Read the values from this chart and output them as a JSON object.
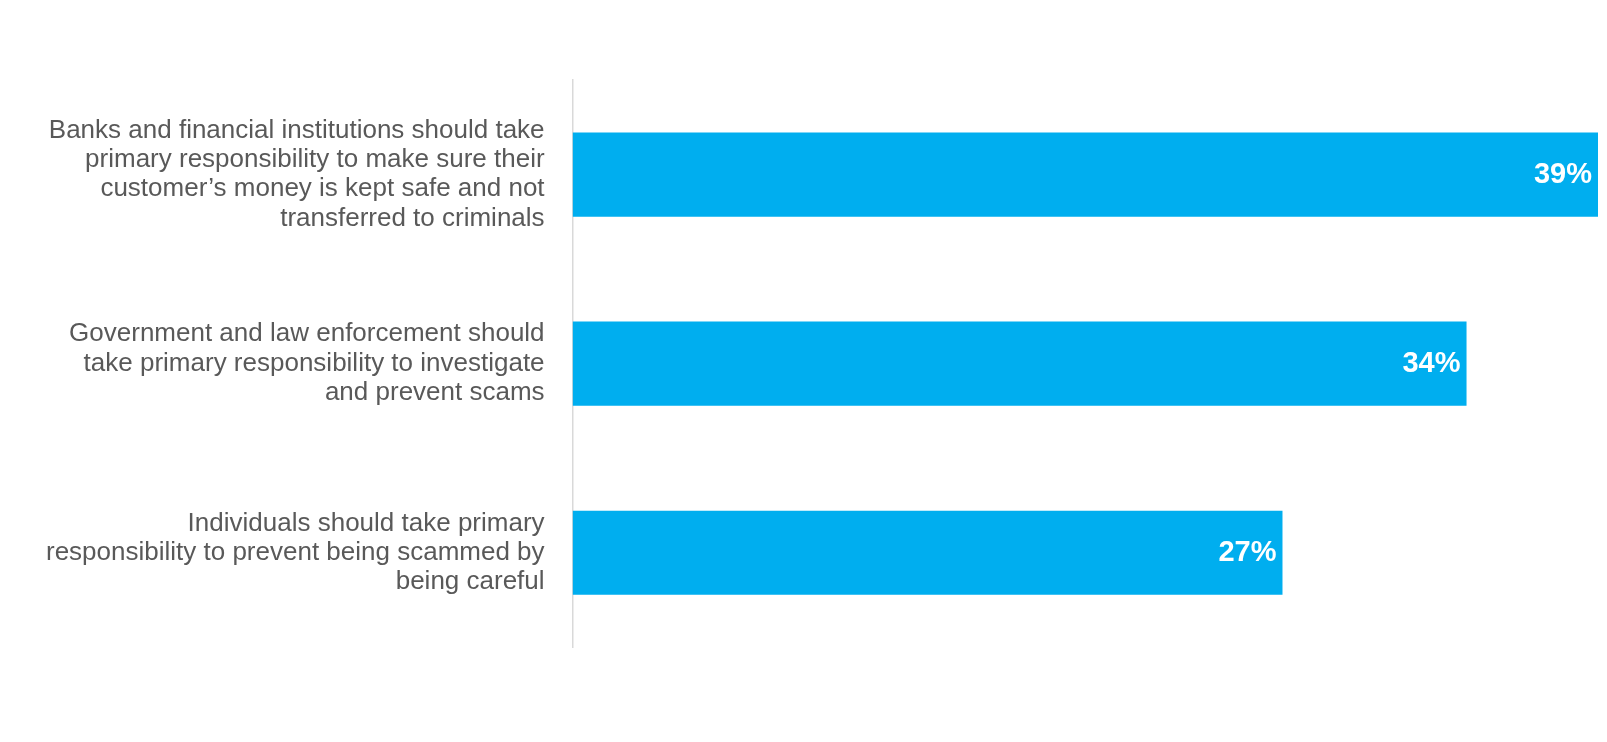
{
  "chart_data": {
    "type": "bar",
    "orientation": "horizontal",
    "categories": [
      "Banks and financial institutions should take primary responsibility to make sure their customer’s money is kept safe and not transferred to criminals",
      "Government and law enforcement should take primary responsibility to investigate and prevent scams",
      "Individuals should take primary responsibility to prevent being scammed by being careful"
    ],
    "values": [
      39,
      34,
      27
    ],
    "color": "#00aeef",
    "value_labels": [
      "39%",
      "34%",
      "27%"
    ],
    "xlim": [
      0,
      39
    ],
    "tick_labels": "y",
    "grid": false,
    "legend": false
  }
}
